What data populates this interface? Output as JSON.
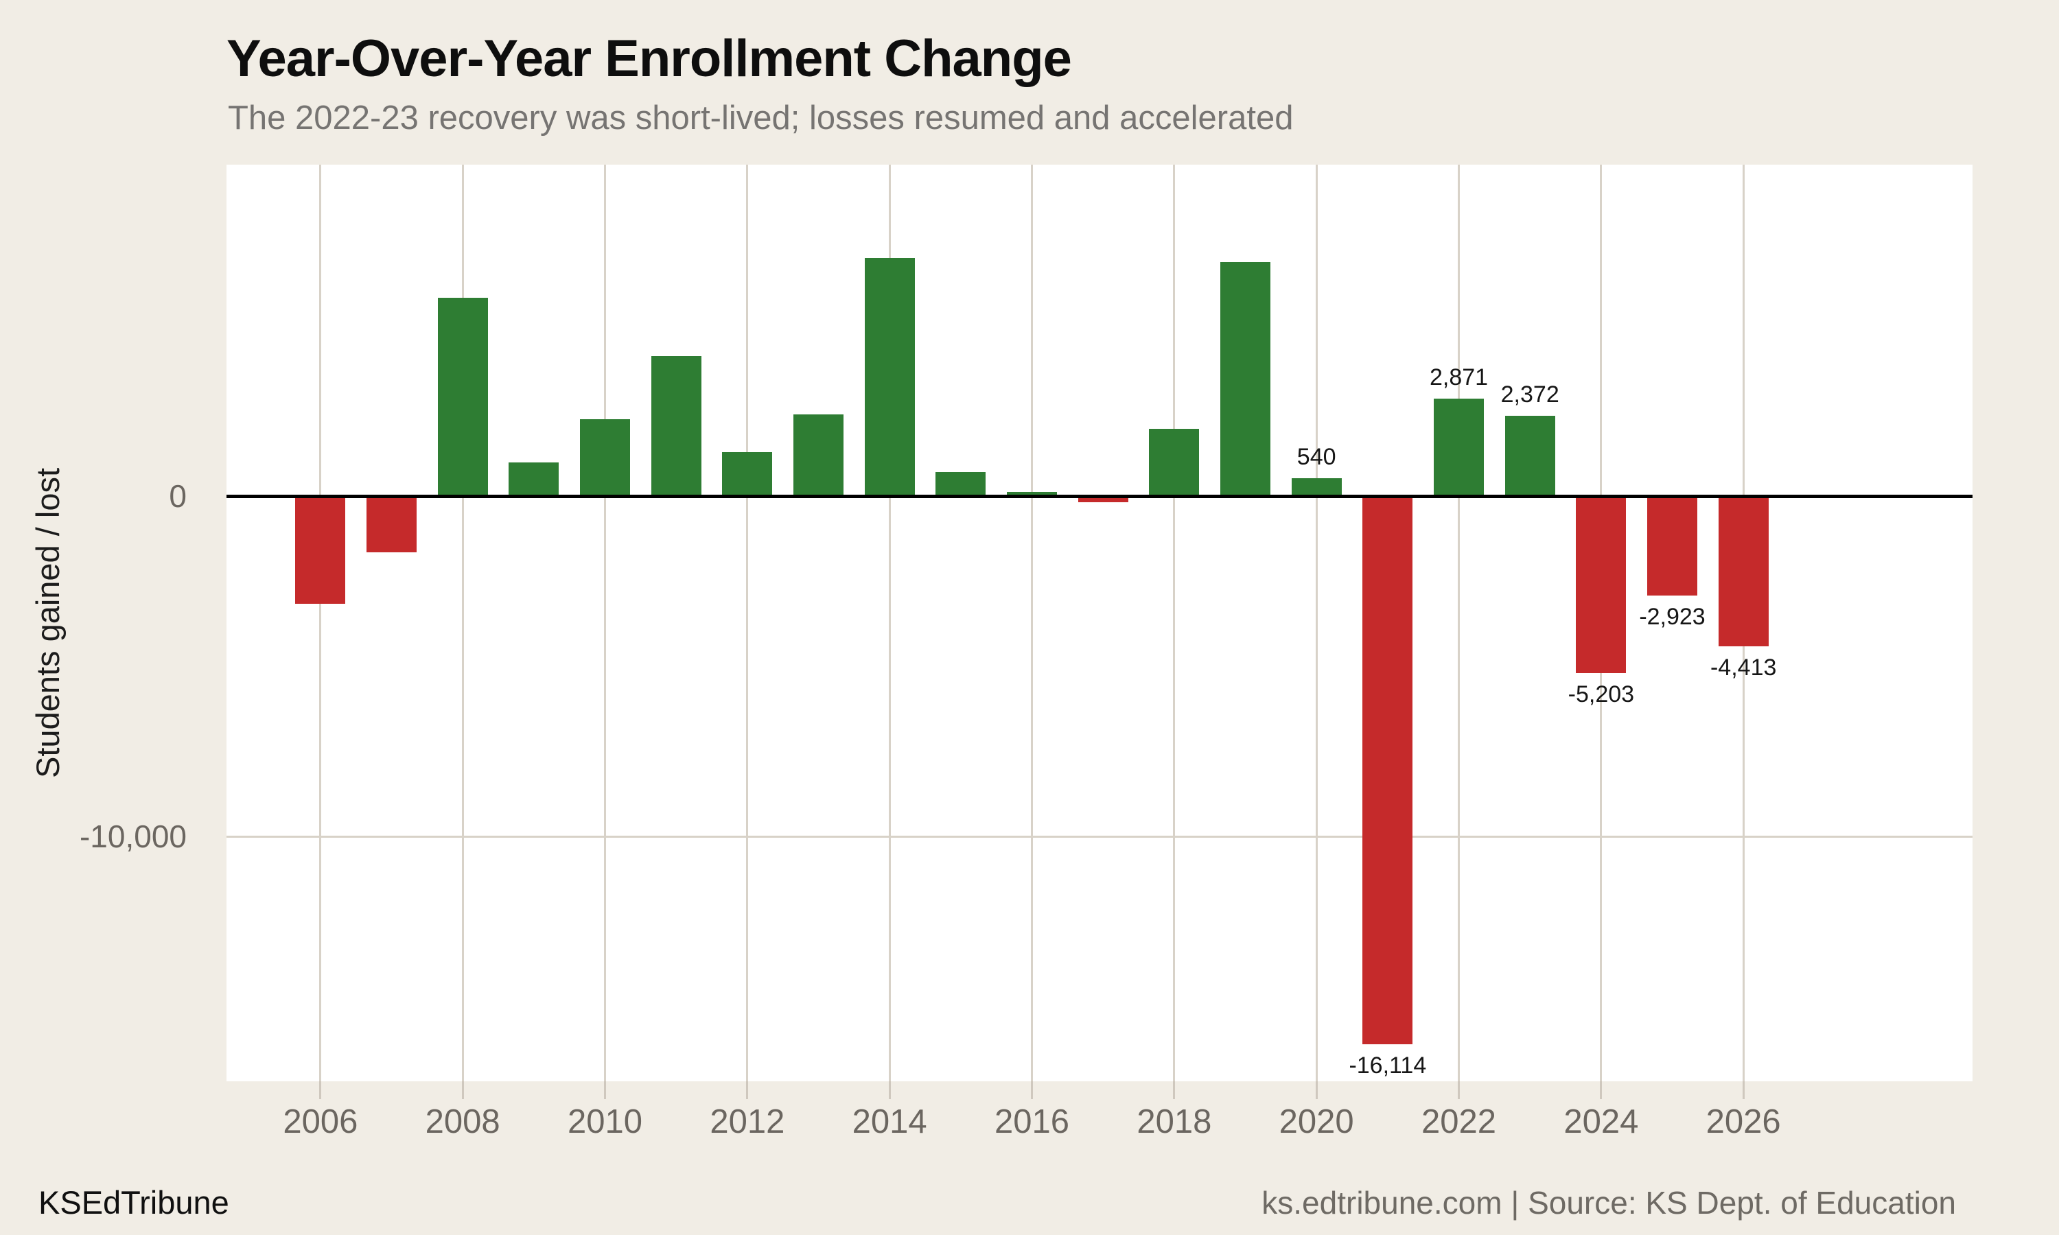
{
  "title": "Year-Over-Year Enrollment Change",
  "subtitle": "The 2022-23 recovery was short-lived; losses resumed and accelerated",
  "y_axis": {
    "title": "Students gained / lost",
    "ticks": [
      {
        "value": 0,
        "label": "0"
      },
      {
        "value": -10000,
        "label": "-10,000"
      }
    ]
  },
  "x_axis": {
    "tick_years": [
      2006,
      2008,
      2010,
      2012,
      2014,
      2016,
      2018,
      2020,
      2022,
      2024,
      2026
    ]
  },
  "footer": {
    "brand": "KSEdTribune",
    "source": "ks.edtribune.com | Source: KS Dept. of Education"
  },
  "colors": {
    "positive": "#2e7d33",
    "negative": "#c52a2b",
    "background": "#f1ede5",
    "plot_background": "#ffffff",
    "gridline": "#d8d2c8",
    "zero_line": "#000000",
    "axis_text": "#6b6660",
    "value_label": "#161616"
  },
  "chart_data": {
    "type": "bar",
    "title": "Year-Over-Year Enrollment Change",
    "subtitle": "The 2022-23 recovery was short-lived; losses resumed and accelerated",
    "xlabel": "",
    "ylabel": "Students gained / lost",
    "x": [
      2006,
      2007,
      2008,
      2009,
      2010,
      2011,
      2012,
      2013,
      2014,
      2015,
      2016,
      2017,
      2018,
      2019,
      2020,
      2021,
      2022,
      2023,
      2024,
      2025,
      2026
    ],
    "values": [
      -3170,
      -1650,
      5840,
      1000,
      2270,
      4120,
      1290,
      2410,
      7010,
      720,
      120,
      -180,
      1980,
      6890,
      540,
      -16114,
      2871,
      2372,
      -5203,
      -2923,
      -4413
    ],
    "data_labels": [
      null,
      null,
      null,
      null,
      null,
      null,
      null,
      null,
      null,
      null,
      null,
      null,
      null,
      null,
      "540",
      "-16,114",
      "2,871",
      "2,372",
      "-5,203",
      "-2,923",
      "-4,413"
    ],
    "ylim": [
      -17200,
      9750
    ],
    "xlim": [
      2004.68,
      2029.22
    ],
    "bar_width_years": 0.704,
    "grid": "vertical-at-even-years, horizontal-at--10000",
    "legend": "none"
  }
}
